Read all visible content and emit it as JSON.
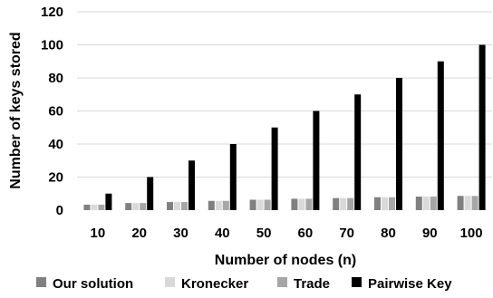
{
  "chart_data": {
    "type": "bar",
    "xlabel": "Number of nodes (n)",
    "ylabel": "Number of keys stored",
    "ylim": [
      0,
      120
    ],
    "yticks": [
      0,
      20,
      40,
      60,
      80,
      100,
      120
    ],
    "grid": true,
    "legend_position": "bottom",
    "categories": [
      "10",
      "20",
      "30",
      "40",
      "50",
      "60",
      "70",
      "80",
      "90",
      "100"
    ],
    "series": [
      {
        "name": "Our solution",
        "color": "#808080",
        "values": [
          3.3,
          4.3,
          4.9,
          5.6,
          6.3,
          6.9,
          7.3,
          7.8,
          8.2,
          8.6
        ]
      },
      {
        "name": "Kronecker",
        "color": "#d9d9d9",
        "values": [
          3.3,
          4.3,
          4.9,
          5.6,
          6.3,
          6.9,
          7.3,
          7.8,
          8.2,
          8.6
        ]
      },
      {
        "name": "Trade",
        "color": "#a6a6a6",
        "values": [
          3.3,
          4.3,
          4.9,
          5.6,
          6.3,
          6.9,
          7.3,
          7.8,
          8.2,
          8.6
        ]
      },
      {
        "name": "Pairwise Key",
        "color": "#000000",
        "values": [
          10,
          20,
          30,
          40,
          50,
          60,
          70,
          80,
          90,
          100
        ]
      }
    ]
  }
}
